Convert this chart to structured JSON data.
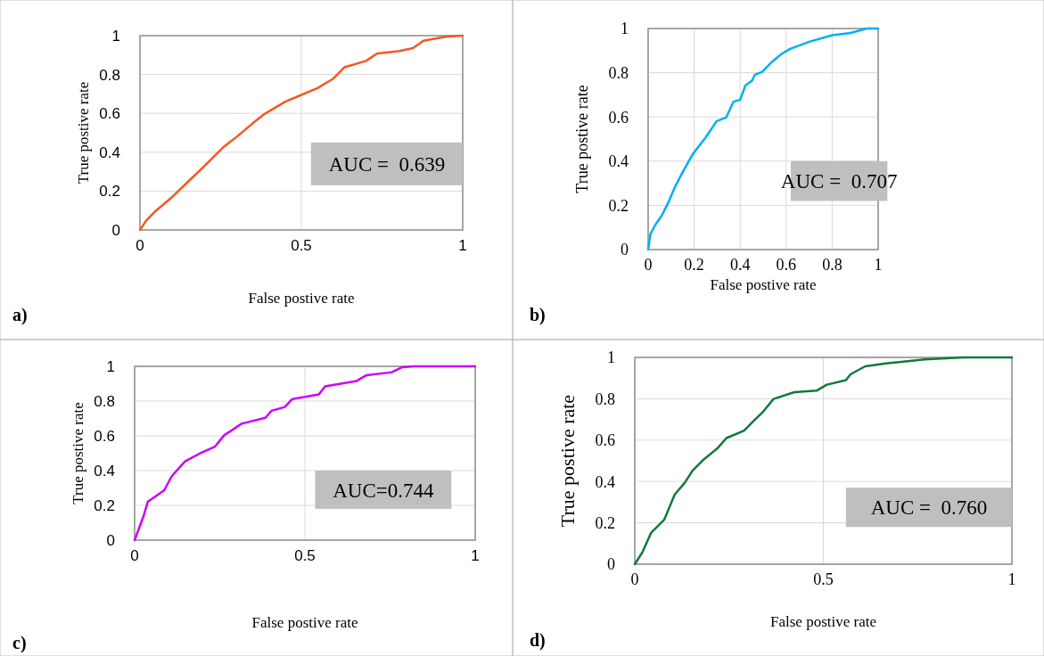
{
  "chart_data": [
    {
      "type": "line",
      "xlabel": "False postive rate",
      "ylabel": "True postive rate",
      "annotations": [
        "AUC =  0.639",
        "a)"
      ],
      "xlim": [
        0,
        1
      ],
      "ylim": [
        0,
        1
      ],
      "xticks": [
        0,
        0.5,
        1
      ],
      "yticks": [
        0,
        0.2,
        0.4,
        0.6,
        0.8,
        1
      ],
      "grid": true,
      "series": [
        {
          "color": "#f4581f",
          "x": [
            0,
            0.02,
            0.05,
            0.1,
            0.15,
            0.2,
            0.257,
            0.3,
            0.35,
            0.386,
            0.45,
            0.5,
            0.55,
            0.6,
            0.633,
            0.7,
            0.735,
            0.8,
            0.846,
            0.878,
            0.95,
            1
          ],
          "values": [
            0,
            0.05,
            0.1,
            0.17,
            0.25,
            0.33,
            0.424,
            0.48,
            0.55,
            0.597,
            0.66,
            0.695,
            0.73,
            0.78,
            0.837,
            0.87,
            0.908,
            0.92,
            0.936,
            0.974,
            0.995,
            1
          ]
        }
      ]
    },
    {
      "type": "line",
      "xlabel": "False postive rate",
      "ylabel": "True postive rate",
      "annotations": [
        "AUC =  0.707",
        "b)"
      ],
      "xlim": [
        0,
        1
      ],
      "ylim": [
        0,
        1
      ],
      "xticks": [
        0,
        0.2,
        0.4,
        0.6,
        0.8,
        1
      ],
      "yticks": [
        0,
        0.2,
        0.4,
        0.6,
        0.8,
        1
      ],
      "grid": true,
      "series": [
        {
          "color": "#00b0f0",
          "x": [
            0,
            0.01,
            0.03,
            0.06,
            0.085,
            0.117,
            0.15,
            0.194,
            0.25,
            0.298,
            0.339,
            0.371,
            0.4,
            0.423,
            0.452,
            0.464,
            0.496,
            0.54,
            0.58,
            0.617,
            0.7,
            0.8,
            0.88,
            0.95,
            1
          ],
          "values": [
            0,
            0.07,
            0.11,
            0.155,
            0.207,
            0.284,
            0.35,
            0.432,
            0.507,
            0.581,
            0.597,
            0.669,
            0.678,
            0.743,
            0.764,
            0.791,
            0.804,
            0.851,
            0.885,
            0.908,
            0.94,
            0.97,
            0.98,
            1,
            1
          ]
        }
      ]
    },
    {
      "type": "line",
      "xlabel": "False postive rate",
      "ylabel": "True postive rate",
      "annotations": [
        "AUC=0.744",
        "c)"
      ],
      "xlim": [
        0,
        1
      ],
      "ylim": [
        0,
        1
      ],
      "xticks": [
        0,
        0.5,
        1
      ],
      "yticks": [
        0,
        0.2,
        0.4,
        0.6,
        0.8,
        1
      ],
      "grid": true,
      "series": [
        {
          "color": "#cc00ff",
          "x": [
            0,
            0.026,
            0.039,
            0.061,
            0.087,
            0.109,
            0.148,
            0.192,
            0.236,
            0.262,
            0.314,
            0.384,
            0.402,
            0.441,
            0.463,
            0.541,
            0.559,
            0.651,
            0.681,
            0.755,
            0.786,
            0.821,
            1
          ],
          "values": [
            0,
            0.137,
            0.222,
            0.251,
            0.287,
            0.368,
            0.453,
            0.499,
            0.538,
            0.602,
            0.67,
            0.704,
            0.744,
            0.766,
            0.812,
            0.838,
            0.885,
            0.915,
            0.949,
            0.966,
            0.995,
            1,
            1
          ]
        }
      ]
    },
    {
      "type": "line",
      "xlabel": "False postive rate",
      "ylabel": "True postive rate",
      "annotations": [
        "AUC =  0.760",
        "d)"
      ],
      "xlim": [
        0,
        1
      ],
      "ylim": [
        0,
        1
      ],
      "xticks": [
        0,
        0.5,
        1
      ],
      "yticks": [
        0,
        0.2,
        0.4,
        0.6,
        0.8,
        1
      ],
      "grid": true,
      "series": [
        {
          "color": "#0f7a3a",
          "x": [
            0,
            0.02,
            0.043,
            0.078,
            0.106,
            0.133,
            0.153,
            0.18,
            0.219,
            0.243,
            0.29,
            0.313,
            0.341,
            0.368,
            0.423,
            0.482,
            0.509,
            0.56,
            0.572,
            0.611,
            0.666,
            0.768,
            0.87,
            1
          ],
          "values": [
            0,
            0.057,
            0.151,
            0.215,
            0.337,
            0.395,
            0.452,
            0.502,
            0.56,
            0.61,
            0.646,
            0.689,
            0.739,
            0.799,
            0.832,
            0.839,
            0.868,
            0.89,
            0.918,
            0.957,
            0.971,
            0.99,
            1,
            1
          ]
        }
      ]
    }
  ]
}
